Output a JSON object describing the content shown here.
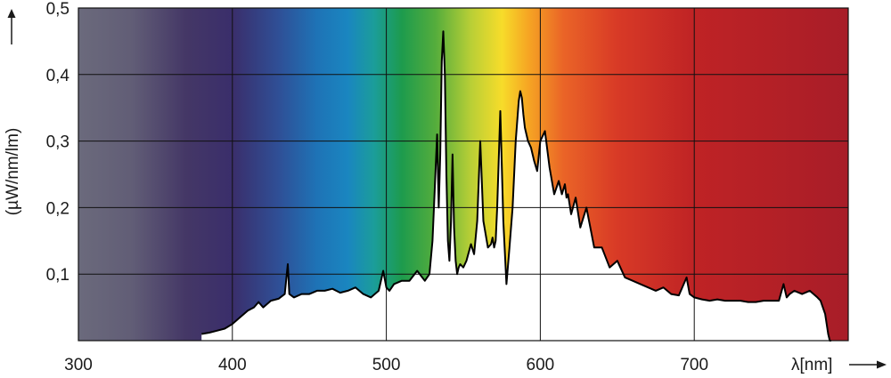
{
  "chart_data": {
    "type": "area",
    "title": "",
    "xlabel": "λ[nm]",
    "ylabel": "(µW/nm/lm)",
    "xlim": [
      300,
      800
    ],
    "ylim": [
      0,
      0.5
    ],
    "x_ticks": [
      300,
      400,
      500,
      600,
      700
    ],
    "x_tick_labels": [
      "300",
      "400",
      "500",
      "600",
      "700"
    ],
    "y_ticks": [
      0.1,
      0.2,
      0.3,
      0.4,
      0.5
    ],
    "y_tick_labels": [
      "0,1",
      "0,2",
      "0,3",
      "0,4",
      "0,5"
    ],
    "grid": true,
    "background": "visible spectrum color gradient",
    "spectrum_colors": [
      {
        "nm": 300,
        "color": "#6b6a7c"
      },
      {
        "nm": 335,
        "color": "#615d76"
      },
      {
        "nm": 370,
        "color": "#443766"
      },
      {
        "nm": 400,
        "color": "#3a2e6b"
      },
      {
        "nm": 430,
        "color": "#2f4f96"
      },
      {
        "nm": 455,
        "color": "#1e73b6"
      },
      {
        "nm": 475,
        "color": "#1a86c0"
      },
      {
        "nm": 492,
        "color": "#1b9d9a"
      },
      {
        "nm": 510,
        "color": "#1d9b4d"
      },
      {
        "nm": 532,
        "color": "#55ad3c"
      },
      {
        "nm": 555,
        "color": "#b9cf36"
      },
      {
        "nm": 575,
        "color": "#f7dc2a"
      },
      {
        "nm": 592,
        "color": "#f6a623"
      },
      {
        "nm": 615,
        "color": "#ea6427"
      },
      {
        "nm": 650,
        "color": "#d83a26"
      },
      {
        "nm": 700,
        "color": "#bf2325"
      },
      {
        "nm": 800,
        "color": "#a81d28"
      }
    ],
    "fill_color": "#ffffff",
    "line_color": "#000000",
    "series": [
      {
        "x": [
          380,
          385,
          390,
          395,
          400,
          405,
          410,
          414,
          417,
          420,
          425,
          430,
          434,
          436,
          437,
          440,
          445,
          450,
          455,
          460,
          465,
          470,
          475,
          480,
          485,
          490,
          495,
          498,
          500,
          502,
          505,
          510,
          515,
          520,
          525,
          528,
          530,
          533,
          534,
          535,
          536,
          537,
          538,
          539,
          540,
          541,
          542,
          543,
          544,
          545,
          546,
          547,
          548,
          550,
          552,
          555,
          557,
          559,
          561,
          563,
          566,
          568,
          569,
          570,
          571,
          572,
          574,
          576,
          578,
          580,
          582,
          584,
          586,
          587,
          588,
          589,
          590,
          592,
          594,
          596,
          598,
          600,
          603,
          606,
          609,
          612,
          614,
          616,
          617,
          618,
          620,
          623,
          626,
          630,
          635,
          640,
          645,
          650,
          655,
          660,
          665,
          670,
          675,
          680,
          685,
          690,
          695,
          697,
          700,
          705,
          710,
          715,
          720,
          725,
          730,
          735,
          740,
          745,
          750,
          755,
          758,
          760,
          762,
          765,
          770,
          775,
          780,
          782,
          785,
          787,
          788,
          789
        ],
        "y": [
          0.01,
          0.012,
          0.015,
          0.018,
          0.025,
          0.035,
          0.045,
          0.05,
          0.058,
          0.05,
          0.06,
          0.063,
          0.07,
          0.115,
          0.07,
          0.065,
          0.07,
          0.07,
          0.075,
          0.075,
          0.078,
          0.072,
          0.075,
          0.08,
          0.07,
          0.065,
          0.075,
          0.105,
          0.08,
          0.075,
          0.085,
          0.09,
          0.09,
          0.105,
          0.09,
          0.1,
          0.15,
          0.31,
          0.2,
          0.28,
          0.42,
          0.465,
          0.4,
          0.25,
          0.15,
          0.12,
          0.18,
          0.28,
          0.17,
          0.12,
          0.1,
          0.11,
          0.115,
          0.11,
          0.12,
          0.145,
          0.13,
          0.18,
          0.3,
          0.18,
          0.14,
          0.145,
          0.155,
          0.14,
          0.15,
          0.2,
          0.345,
          0.18,
          0.085,
          0.14,
          0.2,
          0.3,
          0.36,
          0.375,
          0.365,
          0.34,
          0.32,
          0.3,
          0.29,
          0.27,
          0.255,
          0.3,
          0.315,
          0.26,
          0.22,
          0.24,
          0.22,
          0.235,
          0.215,
          0.22,
          0.19,
          0.215,
          0.17,
          0.2,
          0.14,
          0.14,
          0.11,
          0.12,
          0.095,
          0.09,
          0.085,
          0.08,
          0.075,
          0.08,
          0.07,
          0.068,
          0.095,
          0.07,
          0.065,
          0.062,
          0.06,
          0.062,
          0.06,
          0.06,
          0.06,
          0.058,
          0.058,
          0.06,
          0.06,
          0.06,
          0.085,
          0.065,
          0.07,
          0.075,
          0.07,
          0.075,
          0.065,
          0.06,
          0.04,
          0.01,
          0,
          0
        ]
      }
    ]
  }
}
